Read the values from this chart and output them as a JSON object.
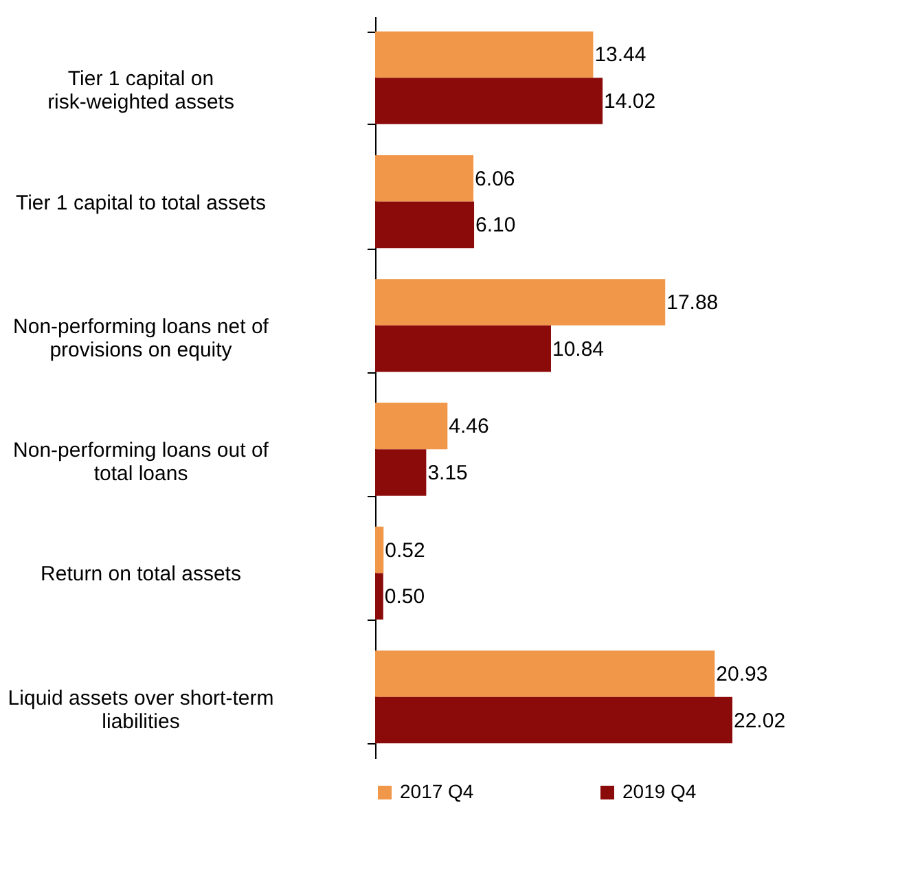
{
  "chart_data": {
    "type": "bar",
    "orientation": "horizontal",
    "legend": "bottom",
    "categories": [
      "Tier 1 capital on risk-weighted assets",
      "Tier 1 capital to total assets",
      "Non-performing loans net of provisions on equity",
      "Non-performing loans out of total loans",
      "Return on total assets",
      "Liquid assets over short-term liabilities"
    ],
    "series": [
      {
        "name": "2017 Q4",
        "color": "#f0974a",
        "values": [
          13.44,
          6.06,
          17.88,
          4.46,
          0.52,
          20.93
        ],
        "value_labels": [
          "13.44",
          "6.06",
          "17.88",
          "4.46",
          "0.52",
          "20.93"
        ]
      },
      {
        "name": "2019 Q4",
        "color": "#8b0a0a",
        "values": [
          14.02,
          6.1,
          10.84,
          3.15,
          0.5,
          22.02
        ],
        "value_labels": [
          "14.02",
          "6.10",
          "10.84",
          "3.15",
          "0.50",
          "22.02"
        ]
      }
    ]
  }
}
